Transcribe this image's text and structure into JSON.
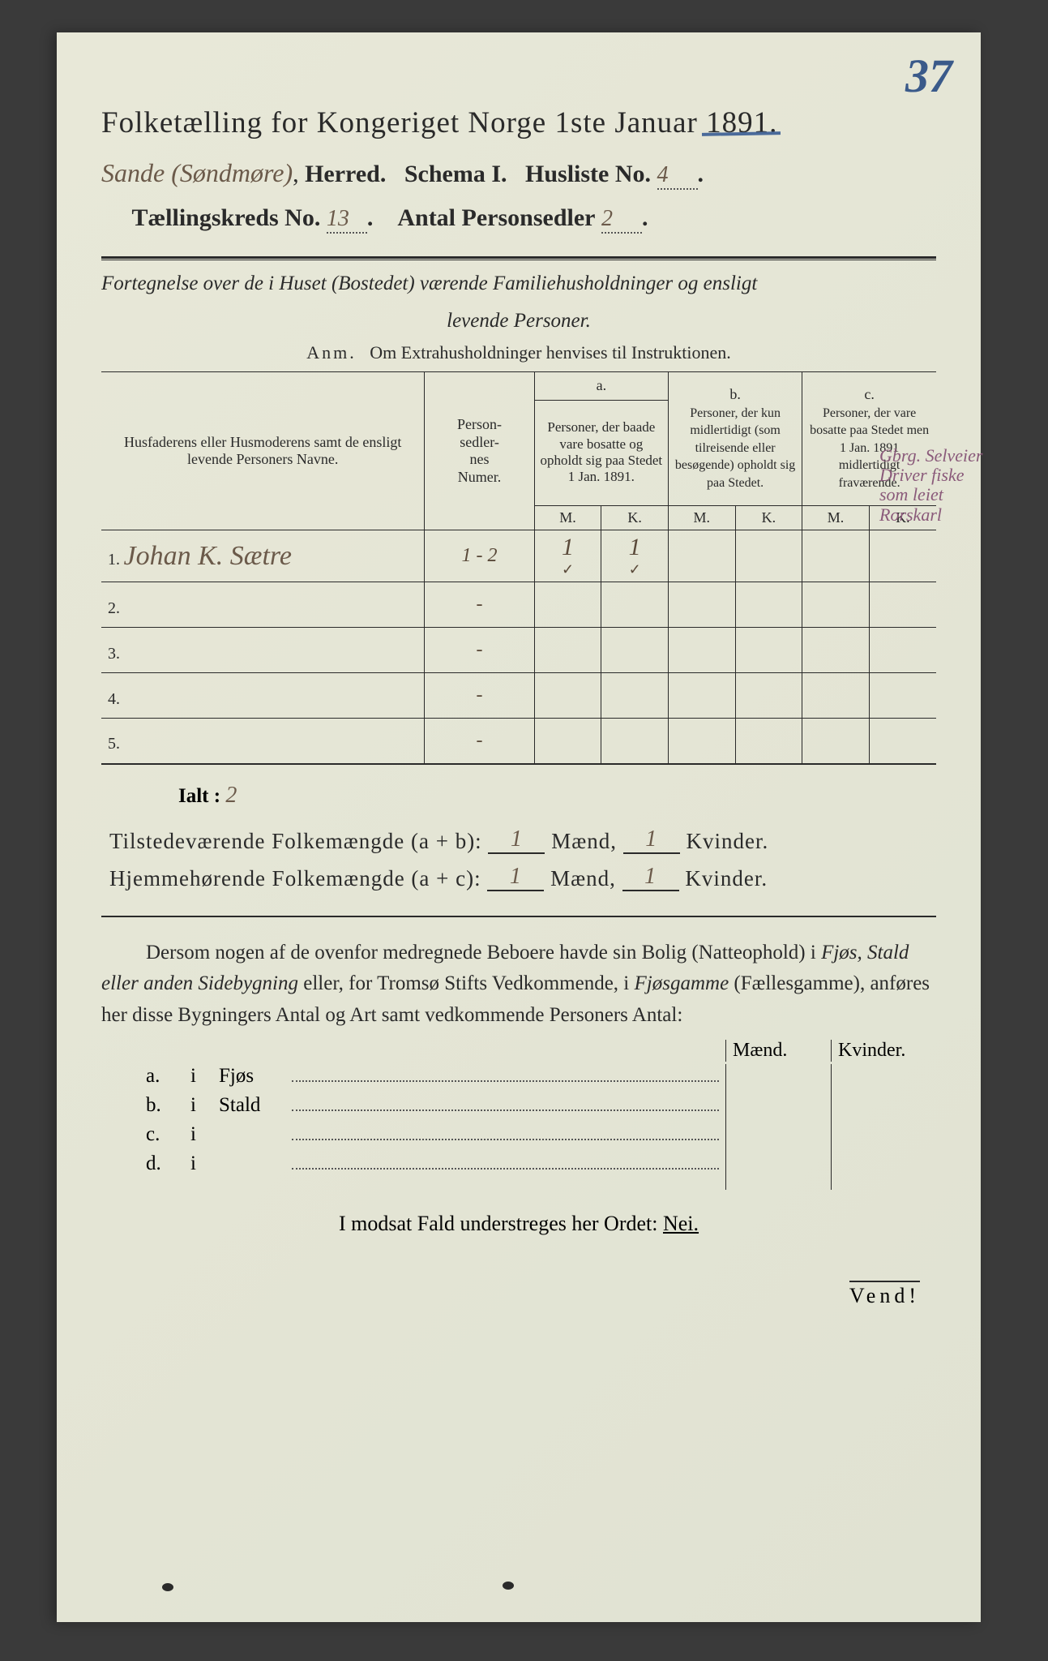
{
  "page_number": "37",
  "header": {
    "title_prefix": "Folketælling for Kongeriget Norge 1ste Januar",
    "year": "1891.",
    "herred_hand": "Sande (Søndmøre)",
    "herred_label": "Herred.",
    "schema_label": "Schema I.",
    "husliste_label": "Husliste No.",
    "husliste_no": "4",
    "kreds_label": "Tællingskreds No.",
    "kreds_no": "13",
    "antal_label": "Antal Personsedler",
    "antal_no": "2"
  },
  "intro": {
    "line1": "Fortegnelse over de i Huset (Bostedet) værende Familiehusholdninger og ensligt",
    "line2": "levende Personer.",
    "anm_label": "Anm.",
    "anm_text": "Om Extrahusholdninger henvises til Instruktionen."
  },
  "table": {
    "col_name": "Husfaderens eller Husmoderens samt de ensligt levende Personers Navne.",
    "col_num": "Person-\nsedler-\nnes\nNumer.",
    "col_a_label": "a.",
    "col_a": "Personer, der baade vare bosatte og opholdt sig paa Stedet 1 Jan. 1891.",
    "col_b_label": "b.",
    "col_b": "Personer, der kun midlertidigt (som tilreisende eller besøgende) opholdt sig paa Stedet.",
    "col_c_label": "c.",
    "col_c": "Personer, der vare bosatte paa Stedet men 1 Jan. 1891 midlertidigt fraværende.",
    "m": "M.",
    "k": "K.",
    "rows": [
      {
        "n": "1.",
        "name": "Johan K. Sætre",
        "num": "1 - 2",
        "am": "1",
        "ak": "1",
        "bm": "",
        "bk": "",
        "cm": "",
        "ck": ""
      },
      {
        "n": "2.",
        "name": "",
        "num": "-",
        "am": "",
        "ak": "",
        "bm": "",
        "bk": "",
        "cm": "",
        "ck": ""
      },
      {
        "n": "3.",
        "name": "",
        "num": "-",
        "am": "",
        "ak": "",
        "bm": "",
        "bk": "",
        "cm": "",
        "ck": ""
      },
      {
        "n": "4.",
        "name": "",
        "num": "-",
        "am": "",
        "ak": "",
        "bm": "",
        "bk": "",
        "cm": "",
        "ck": ""
      },
      {
        "n": "5.",
        "name": "",
        "num": "-",
        "am": "",
        "ak": "",
        "bm": "",
        "bk": "",
        "cm": "",
        "ck": ""
      }
    ]
  },
  "margin_note": "Gbrg. Selveier Driver fiske som leiet Rorskarl",
  "ialt_label": "Ialt :",
  "ialt_value": "2",
  "totals": {
    "row1_label": "Tilstedeværende Folkemængde (a + b):",
    "row2_label": "Hjemmehørende Folkemængde (a + c):",
    "maend": "Mænd,",
    "kvinder": "Kvinder.",
    "r1m": "1",
    "r1k": "1",
    "r2m": "1",
    "r2k": "1"
  },
  "paragraph": {
    "text1": "Dersom nogen af de ovenfor medregnede Beboere havde sin Bolig (Natteophold) i ",
    "em1": "Fjøs, Stald eller anden Sidebygning",
    "text2": " eller, for Tromsø Stifts Vedkommende, i ",
    "em2": "Fjøsgamme",
    "text3": " (Fællesgamme), anføres her disse Bygningers Antal og Art samt vedkommende Personers Antal:"
  },
  "sublist": {
    "maend": "Mænd.",
    "kvinder": "Kvinder.",
    "rows": [
      {
        "lbl": "a.",
        "nm": "Fjøs"
      },
      {
        "lbl": "b.",
        "nm": "Stald"
      },
      {
        "lbl": "c.",
        "nm": ""
      },
      {
        "lbl": "d.",
        "nm": ""
      }
    ],
    "i": "i"
  },
  "modsat": {
    "pre": "I modsat Fald understreges her Ordet: ",
    "nei": "Nei."
  },
  "vend": "Vend!",
  "colors": {
    "bg": "#e8e8d8",
    "ink": "#2a2a2a",
    "handwriting": "#6b5a4a",
    "pencil_blue": "#4a6a9a",
    "margin_ink": "#8a5a7a"
  }
}
